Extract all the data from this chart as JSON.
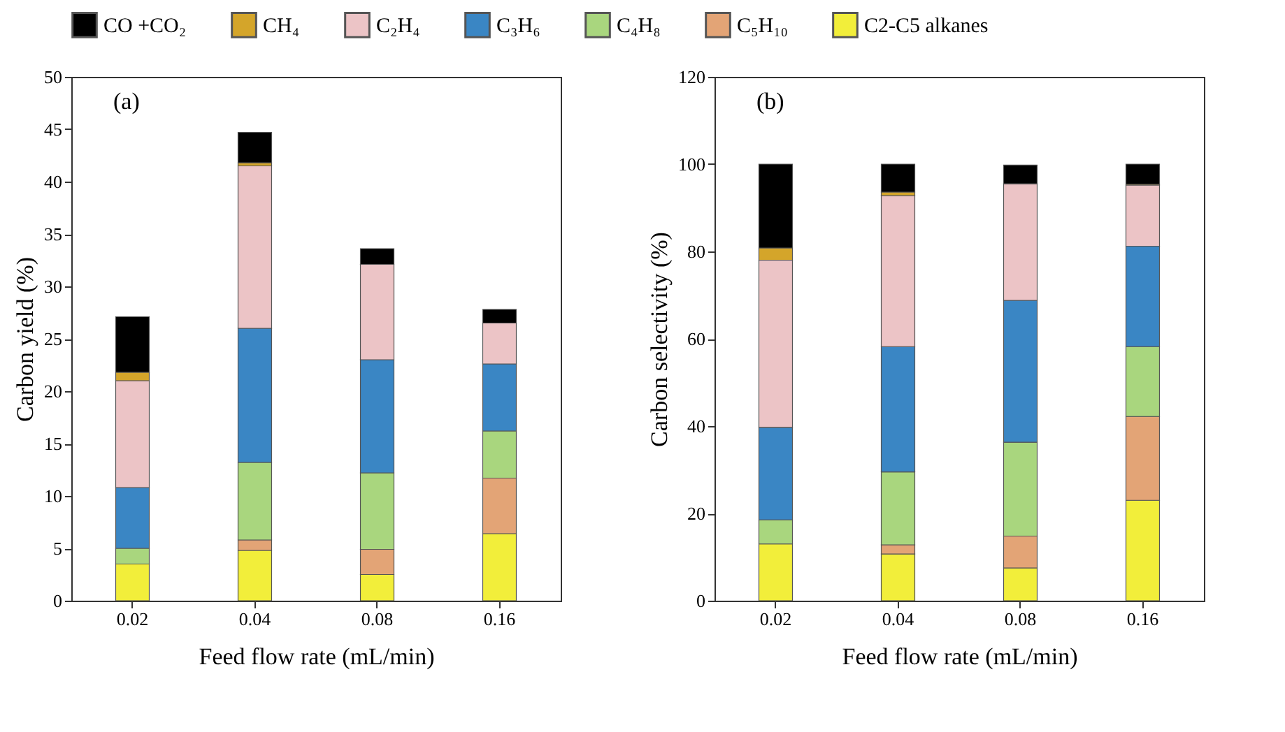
{
  "chart_data": [
    {
      "type": "bar",
      "stacked": true,
      "categories": [
        "0.02",
        "0.04",
        "0.08",
        "0.16"
      ],
      "xlabel": "Feed flow rate (mL/min)",
      "ylabel": "Carbon yield (%)",
      "ylim": [
        0,
        50
      ],
      "yticks": [
        0,
        5,
        10,
        15,
        20,
        25,
        30,
        35,
        40,
        45,
        50
      ],
      "grid": false,
      "legend": "top",
      "annotations": [
        "(a)"
      ],
      "series": [
        {
          "name": "C2-C5 alkanes",
          "color": "#f2ee3a",
          "values": [
            3.5,
            4.8,
            2.5,
            6.4
          ]
        },
        {
          "name": "C₅H₁₀",
          "color": "#e3a476",
          "values": [
            null,
            1.0,
            2.4,
            5.3
          ]
        },
        {
          "name": "C₄H₈",
          "color": "#a9d67e",
          "values": [
            1.5,
            7.4,
            7.3,
            4.5
          ]
        },
        {
          "name": "C₃H₆",
          "color": "#3a86c4",
          "values": [
            5.8,
            12.8,
            10.8,
            6.4
          ]
        },
        {
          "name": "C₂H₄",
          "color": "#ecc4c6",
          "values": [
            10.2,
            15.5,
            9.1,
            3.9
          ]
        },
        {
          "name": "CH₄",
          "color": "#d4a52a",
          "values": [
            0.8,
            0.3,
            null,
            null
          ]
        },
        {
          "name": "CO +CO₂",
          "color": "#000000",
          "values": [
            5.3,
            2.9,
            1.5,
            1.3
          ]
        }
      ]
    },
    {
      "type": "bar",
      "stacked": true,
      "categories": [
        "0.02",
        "0.04",
        "0.08",
        "0.16"
      ],
      "xlabel": "Feed flow rate (mL/min)",
      "ylabel": "Carbon selectivity (%)",
      "ylim": [
        0,
        120
      ],
      "yticks": [
        0,
        20,
        40,
        60,
        80,
        100,
        120
      ],
      "grid": false,
      "legend": "top",
      "annotations": [
        "(b)"
      ],
      "series": [
        {
          "name": "C2-C5 alkanes",
          "color": "#f2ee3a",
          "values": [
            13.0,
            10.7,
            7.5,
            23.0
          ]
        },
        {
          "name": "C₅H₁₀",
          "color": "#e3a476",
          "values": [
            null,
            2.1,
            7.3,
            19.2
          ]
        },
        {
          "name": "C₄H₈",
          "color": "#a9d67e",
          "values": [
            5.5,
            16.7,
            21.5,
            16.0
          ]
        },
        {
          "name": "C₃H₆",
          "color": "#3a86c4",
          "values": [
            21.2,
            28.7,
            32.5,
            23.0
          ]
        },
        {
          "name": "C₂H₄",
          "color": "#ecc4c6",
          "values": [
            38.3,
            34.6,
            26.7,
            14.0
          ]
        },
        {
          "name": "CH₄",
          "color": "#d4a52a",
          "values": [
            2.8,
            0.8,
            null,
            0.2
          ]
        },
        {
          "name": "CO +CO₂",
          "color": "#000000",
          "values": [
            19.2,
            6.4,
            4.3,
            4.6
          ]
        }
      ]
    }
  ]
}
